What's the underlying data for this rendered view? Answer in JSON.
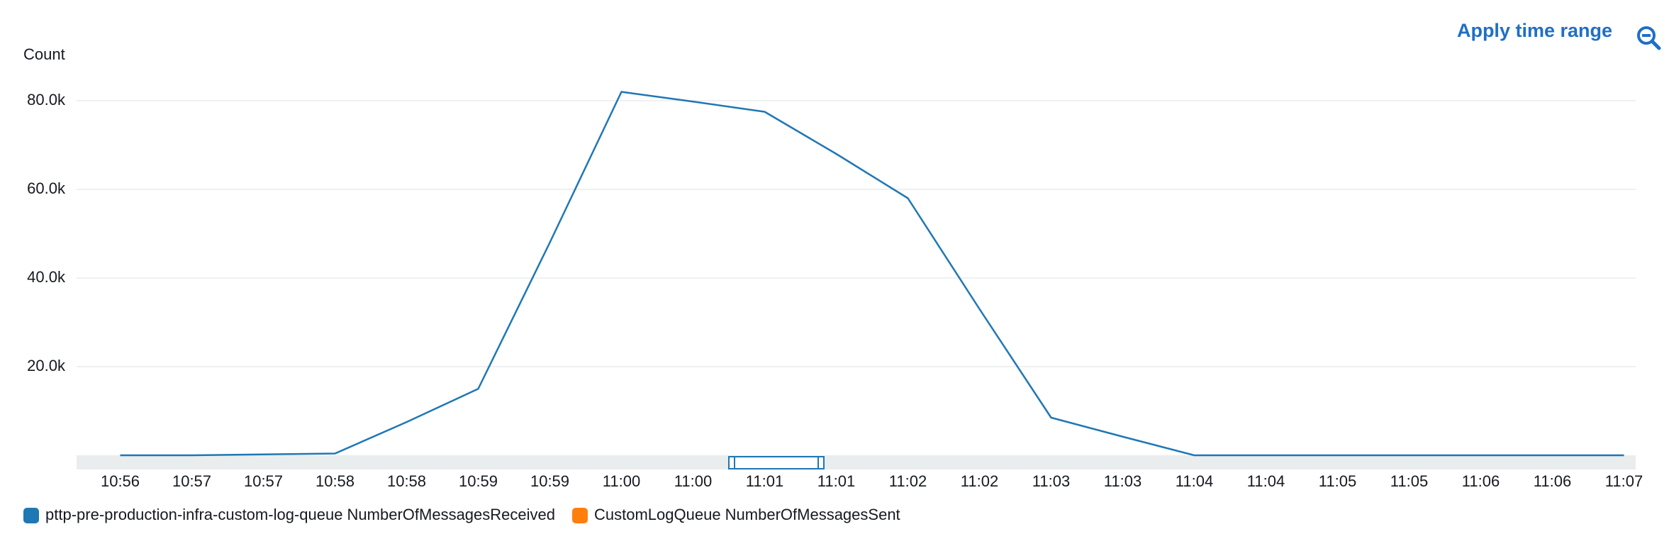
{
  "chart_data": {
    "type": "line",
    "action": "Apply time range",
    "ylabel": "Count",
    "categories": [
      "10:56",
      "10:57",
      "10:57",
      "10:58",
      "10:58",
      "10:59",
      "10:59",
      "11:00",
      "11:00",
      "11:01",
      "11:01",
      "11:02",
      "11:02",
      "11:03",
      "11:03",
      "11:04",
      "11:04",
      "11:05",
      "11:05",
      "11:06",
      "11:06",
      "11:07"
    ],
    "series": [
      {
        "name": "pttp-pre-production-infra-custom-log-queue NumberOfMessagesReceived",
        "color": "#1f77b4",
        "values": [
          0,
          0,
          200,
          400,
          7500,
          15000,
          48000,
          82000,
          79800,
          77500,
          68000,
          58000,
          33000,
          8500,
          4200,
          0,
          0,
          0,
          0,
          0,
          0,
          0
        ]
      },
      {
        "name": "CustomLogQueue NumberOfMessagesSent",
        "color": "#ff7f0e"
      }
    ],
    "ylim": [
      0,
      90000
    ],
    "yticks": [
      {
        "value": 20000,
        "label": "20.0k"
      },
      {
        "value": 40000,
        "label": "40.0k"
      },
      {
        "value": 60000,
        "label": "60.0k"
      },
      {
        "value": 80000,
        "label": "80.0k"
      }
    ],
    "grid": true
  }
}
